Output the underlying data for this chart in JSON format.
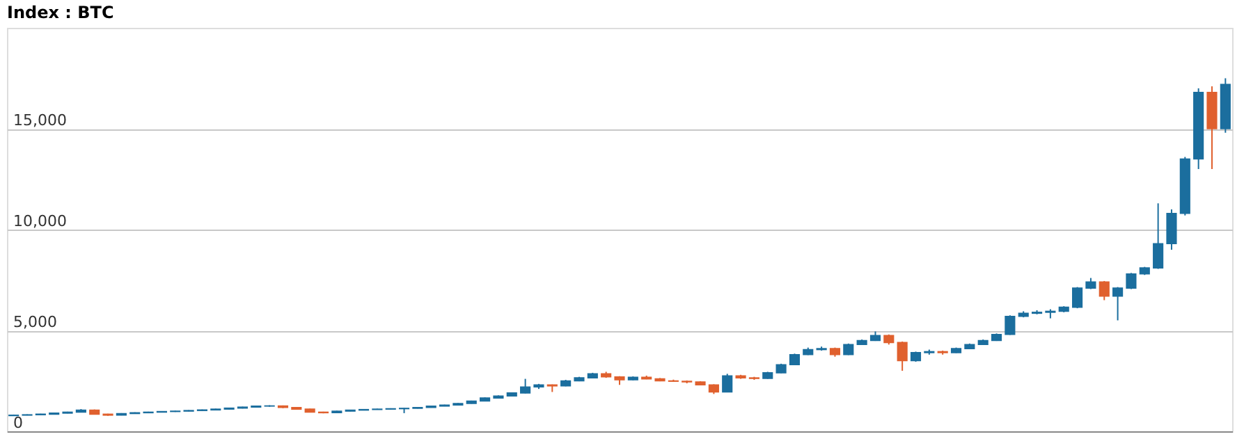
{
  "chart_data": {
    "type": "candlestick",
    "title": "Index : BTC",
    "categories": [
      null,
      null,
      null,
      null,
      null,
      null,
      null,
      null,
      null,
      null,
      null,
      null,
      null,
      null,
      null,
      null,
      null,
      null,
      null,
      null,
      null,
      null,
      null,
      null,
      null,
      null,
      null,
      null,
      null,
      null,
      null,
      null,
      null,
      null,
      null,
      null,
      null,
      null,
      null,
      null,
      null,
      null,
      null,
      null,
      null,
      null,
      null,
      null,
      null,
      null,
      null,
      null,
      null,
      null,
      null,
      null,
      null,
      null,
      null,
      null,
      null,
      null,
      null,
      null,
      null,
      null,
      null,
      null,
      null,
      null,
      null,
      null,
      null,
      null,
      null,
      null,
      null,
      null,
      null,
      null,
      null,
      null,
      null,
      null,
      null,
      null,
      null,
      null,
      null,
      null,
      null
    ],
    "ohlc": [
      [
        780,
        830,
        760,
        800
      ],
      [
        800,
        840,
        790,
        820
      ],
      [
        820,
        870,
        810,
        850
      ],
      [
        850,
        920,
        840,
        900
      ],
      [
        900,
        970,
        890,
        950
      ],
      [
        950,
        1100,
        940,
        1050
      ],
      [
        1050,
        1080,
        830,
        850
      ],
      [
        850,
        870,
        770,
        800
      ],
      [
        800,
        900,
        790,
        880
      ],
      [
        880,
        940,
        870,
        920
      ],
      [
        920,
        970,
        900,
        950
      ],
      [
        950,
        1000,
        940,
        980
      ],
      [
        980,
        1020,
        960,
        1000
      ],
      [
        1000,
        1050,
        990,
        1030
      ],
      [
        1030,
        1080,
        1010,
        1060
      ],
      [
        1060,
        1120,
        1050,
        1100
      ],
      [
        1100,
        1170,
        1090,
        1150
      ],
      [
        1150,
        1220,
        1130,
        1200
      ],
      [
        1200,
        1270,
        1190,
        1250
      ],
      [
        1250,
        1290,
        1220,
        1260
      ],
      [
        1260,
        1280,
        1150,
        1180
      ],
      [
        1180,
        1200,
        1080,
        1100
      ],
      [
        1100,
        1120,
        930,
        950
      ],
      [
        950,
        970,
        890,
        920
      ],
      [
        920,
        1020,
        910,
        1000
      ],
      [
        1000,
        1070,
        990,
        1050
      ],
      [
        1050,
        1100,
        1040,
        1080
      ],
      [
        1080,
        1120,
        1070,
        1100
      ],
      [
        1100,
        1140,
        1090,
        1120
      ],
      [
        1120,
        1160,
        900,
        1140
      ],
      [
        1140,
        1200,
        1130,
        1180
      ],
      [
        1180,
        1270,
        1170,
        1250
      ],
      [
        1250,
        1320,
        1240,
        1300
      ],
      [
        1300,
        1400,
        1290,
        1380
      ],
      [
        1380,
        1520,
        1370,
        1500
      ],
      [
        1500,
        1680,
        1490,
        1650
      ],
      [
        1650,
        1780,
        1630,
        1750
      ],
      [
        1750,
        1930,
        1730,
        1900
      ],
      [
        1900,
        2600,
        1880,
        2200
      ],
      [
        2200,
        2350,
        2100,
        2300
      ],
      [
        2300,
        2320,
        1950,
        2250
      ],
      [
        2250,
        2550,
        2230,
        2500
      ],
      [
        2500,
        2700,
        2480,
        2650
      ],
      [
        2650,
        2900,
        2630,
        2850
      ],
      [
        2850,
        2950,
        2650,
        2700
      ],
      [
        2700,
        2730,
        2300,
        2550
      ],
      [
        2550,
        2720,
        2530,
        2680
      ],
      [
        2680,
        2760,
        2580,
        2600
      ],
      [
        2600,
        2640,
        2480,
        2500
      ],
      [
        2500,
        2560,
        2460,
        2480
      ],
      [
        2480,
        2520,
        2380,
        2450
      ],
      [
        2450,
        2480,
        2280,
        2300
      ],
      [
        2300,
        2330,
        1850,
        1950
      ],
      [
        1950,
        2850,
        1930,
        2750
      ],
      [
        2750,
        2800,
        2600,
        2650
      ],
      [
        2650,
        2700,
        2550,
        2620
      ],
      [
        2620,
        2950,
        2600,
        2900
      ],
      [
        2900,
        3350,
        2880,
        3300
      ],
      [
        3300,
        3850,
        3280,
        3800
      ],
      [
        3800,
        4150,
        3780,
        4050
      ],
      [
        4050,
        4200,
        4000,
        4100
      ],
      [
        4100,
        4150,
        3700,
        3800
      ],
      [
        3800,
        4350,
        3780,
        4300
      ],
      [
        4300,
        4550,
        4280,
        4500
      ],
      [
        4500,
        4950,
        4480,
        4750
      ],
      [
        4750,
        4800,
        4300,
        4400
      ],
      [
        4400,
        4450,
        3000,
        3500
      ],
      [
        3500,
        3950,
        3450,
        3900
      ],
      [
        3900,
        4050,
        3800,
        3950
      ],
      [
        3950,
        4000,
        3800,
        3900
      ],
      [
        3900,
        4150,
        3880,
        4100
      ],
      [
        4100,
        4350,
        4080,
        4300
      ],
      [
        4300,
        4550,
        4280,
        4500
      ],
      [
        4500,
        4850,
        4480,
        4800
      ],
      [
        4800,
        5750,
        4780,
        5700
      ],
      [
        5700,
        5950,
        5650,
        5850
      ],
      [
        5850,
        6000,
        5800,
        5900
      ],
      [
        5900,
        6050,
        5600,
        5950
      ],
      [
        5950,
        6200,
        5900,
        6150
      ],
      [
        6150,
        7150,
        6100,
        7100
      ],
      [
        7100,
        7600,
        7050,
        7400
      ],
      [
        7400,
        7450,
        6500,
        6700
      ],
      [
        6700,
        7150,
        5500,
        7100
      ],
      [
        7100,
        7850,
        7050,
        7800
      ],
      [
        7800,
        8150,
        7750,
        8100
      ],
      [
        8100,
        11300,
        8050,
        9300
      ],
      [
        9300,
        11000,
        9000,
        10800
      ],
      [
        10800,
        13600,
        10700,
        13500
      ],
      [
        13500,
        17000,
        13000,
        16800
      ],
      [
        16800,
        17100,
        13000,
        15000
      ],
      [
        15000,
        17500,
        14800,
        17200
      ]
    ],
    "colors": [
      "#1b6e9e",
      "#1b6e9e",
      "#1b6e9e",
      "#1b6e9e",
      "#1b6e9e",
      "#1b6e9e",
      "#e0602e",
      "#e0602e",
      "#1b6e9e",
      "#1b6e9e",
      "#1b6e9e",
      "#1b6e9e",
      "#1b6e9e",
      "#1b6e9e",
      "#1b6e9e",
      "#1b6e9e",
      "#1b6e9e",
      "#1b6e9e",
      "#1b6e9e",
      "#1b6e9e",
      "#e0602e",
      "#e0602e",
      "#e0602e",
      "#e0602e",
      "#1b6e9e",
      "#1b6e9e",
      "#1b6e9e",
      "#1b6e9e",
      "#1b6e9e",
      "#1b6e9e",
      "#1b6e9e",
      "#1b6e9e",
      "#1b6e9e",
      "#1b6e9e",
      "#1b6e9e",
      "#1b6e9e",
      "#1b6e9e",
      "#1b6e9e",
      "#1b6e9e",
      "#1b6e9e",
      "#e0602e",
      "#1b6e9e",
      "#1b6e9e",
      "#1b6e9e",
      "#e0602e",
      "#e0602e",
      "#1b6e9e",
      "#e0602e",
      "#e0602e",
      "#e0602e",
      "#e0602e",
      "#e0602e",
      "#e0602e",
      "#1b6e9e",
      "#e0602e",
      "#e0602e",
      "#1b6e9e",
      "#1b6e9e",
      "#1b6e9e",
      "#1b6e9e",
      "#1b6e9e",
      "#e0602e",
      "#1b6e9e",
      "#1b6e9e",
      "#1b6e9e",
      "#e0602e",
      "#e0602e",
      "#1b6e9e",
      "#1b6e9e",
      "#e0602e",
      "#1b6e9e",
      "#1b6e9e",
      "#1b6e9e",
      "#1b6e9e",
      "#1b6e9e",
      "#1b6e9e",
      "#1b6e9e",
      "#1b6e9e",
      "#1b6e9e",
      "#1b6e9e",
      "#1b6e9e",
      "#e0602e",
      "#1b6e9e",
      "#1b6e9e",
      "#1b6e9e",
      "#1b6e9e",
      "#1b6e9e",
      "#1b6e9e",
      "#1b6e9e",
      "#e0602e",
      "#1b6e9e"
    ],
    "ylim": [
      0,
      20000
    ],
    "yticks": [
      0,
      {
        "value": 5000,
        "label": "5,000"
      },
      {
        "value": 10000,
        "label": "10,000"
      },
      {
        "value": 15000,
        "label": "15,000"
      }
    ],
    "grid": "y",
    "tick_labels": "y"
  }
}
